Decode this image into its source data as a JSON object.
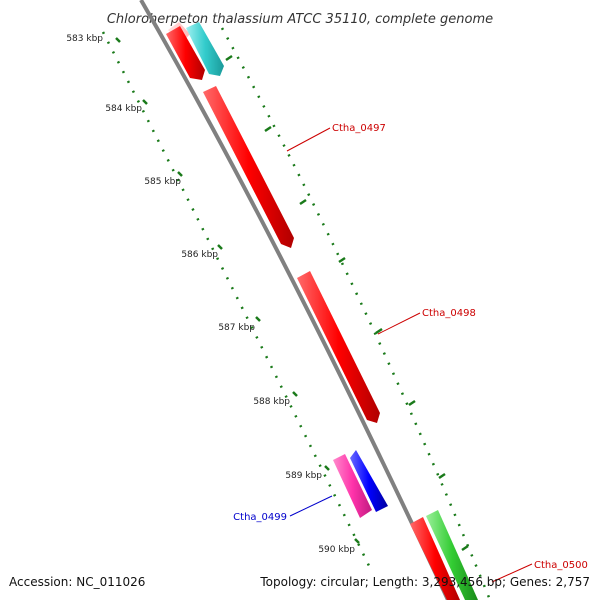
{
  "title": "Chloroherpeton thalassium ATCC 35110, complete genome",
  "scale_labels": [
    "583 kbp",
    "584 kbp",
    "585 kbp",
    "586 kbp",
    "587 kbp",
    "588 kbp",
    "589 kbp",
    "590 kbp"
  ],
  "genes": [
    {
      "name": "Ctha_0497",
      "color": "#cc0000"
    },
    {
      "name": "Ctha_0498",
      "color": "#cc0000"
    },
    {
      "name": "Ctha_0499",
      "color": "#0000cc"
    },
    {
      "name": "Ctha_0500",
      "color": "#cc0000"
    }
  ],
  "footer": {
    "accession": "Accession: NC_011026",
    "topology": "Topology: circular; Length: 3,293,456 bp; Genes: 2,757"
  },
  "colors": {
    "backbone": "#808080",
    "red_feature": "#ff0000",
    "cyan_feature": "#33cccc",
    "blue_feature": "#0000ff",
    "magenta_feature": "#ff33aa",
    "green_feature": "#33cc33",
    "dotted_track": "#1a7a1a"
  }
}
